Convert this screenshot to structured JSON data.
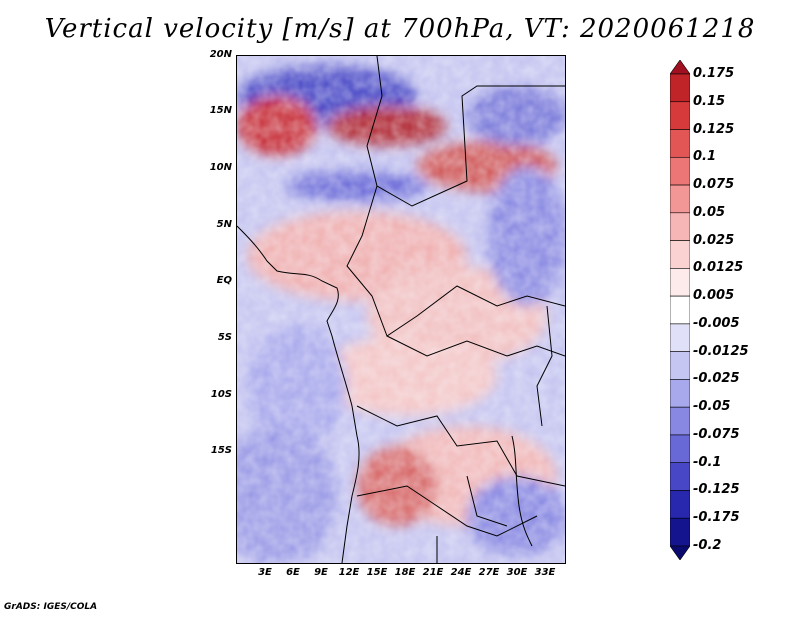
{
  "title": "Vertical velocity [m/s] at 700hPa, VT: 2020061218",
  "footer": "GrADS: IGES/COLA",
  "lat_labels": [
    "20N",
    "15N",
    "10N",
    "5N",
    "EQ",
    "5S",
    "10S",
    "15S"
  ],
  "lon_labels": [
    "3E",
    "6E",
    "9E",
    "12E",
    "15E",
    "18E",
    "21E",
    "24E",
    "27E",
    "30E",
    "33E"
  ],
  "colorbar": {
    "levels": [
      "0.175",
      "0.15",
      "0.125",
      "0.1",
      "0.075",
      "0.05",
      "0.025",
      "0.0125",
      "0.005",
      "-0.005",
      "-0.0125",
      "-0.025",
      "-0.05",
      "-0.075",
      "-0.1",
      "-0.125",
      "-0.175",
      "-0.2"
    ],
    "colors": [
      "#a01020",
      "#c02428",
      "#d63a3a",
      "#e25656",
      "#ec7676",
      "#f29696",
      "#f6b6b6",
      "#fad2d2",
      "#fdeaea",
      "#ffffff",
      "#e0e0f8",
      "#c6c6f2",
      "#a8a8ec",
      "#8888e2",
      "#6868d6",
      "#4848c6",
      "#2828ae",
      "#14148e",
      "#0a0a6e"
    ]
  },
  "map_colors": {
    "red": "#c8323a",
    "pink": "#f4b8b8",
    "lightblue": "#c8c8f2",
    "blue": "#6a6ad8",
    "navy": "#1e1e90"
  }
}
